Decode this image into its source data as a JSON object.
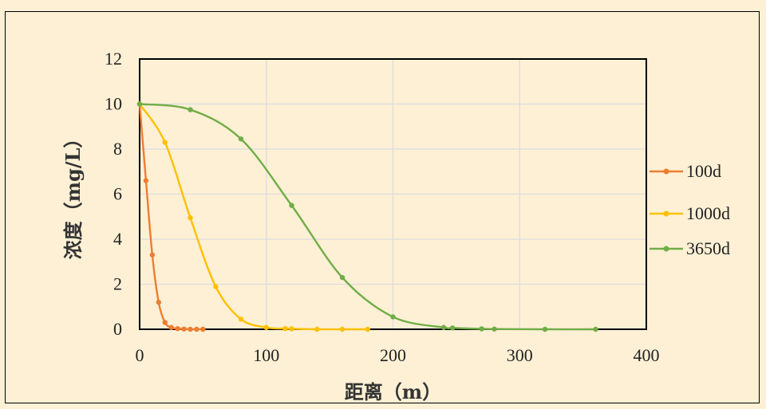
{
  "colors": {
    "background": "#fdf0d5",
    "plot_background": "#fdf0d5",
    "grid": "#dddddd",
    "series_100d": "#ed7d31",
    "series_1000d": "#ffc000",
    "series_3650d": "#70ad47"
  },
  "chart_data": {
    "type": "line",
    "title": "",
    "xlabel": "距离（m）",
    "ylabel": "浓度（mg/L）",
    "xlim": [
      0,
      400
    ],
    "ylim": [
      0,
      12
    ],
    "x_ticks": [
      "0",
      "100",
      "200",
      "300",
      "400"
    ],
    "y_ticks": [
      "0",
      "2",
      "4",
      "6",
      "8",
      "10",
      "12"
    ],
    "grid": true,
    "legend_position": "right",
    "series": [
      {
        "name": "100d",
        "color": "#ed7d31",
        "points": [
          [
            0,
            10
          ],
          [
            5,
            6.6
          ],
          [
            10,
            3.3
          ],
          [
            15,
            1.2
          ],
          [
            20,
            0.3
          ],
          [
            25,
            0.08
          ],
          [
            30,
            0.03
          ],
          [
            35,
            0.01
          ],
          [
            40,
            0.0
          ],
          [
            45,
            0.0
          ],
          [
            50,
            0.0
          ]
        ]
      },
      {
        "name": "1000d",
        "color": "#ffc000",
        "points": [
          [
            0,
            10
          ],
          [
            20,
            8.3
          ],
          [
            40,
            4.95
          ],
          [
            60,
            1.9
          ],
          [
            80,
            0.45
          ],
          [
            100,
            0.08
          ],
          [
            115,
            0.03
          ],
          [
            120,
            0.02
          ],
          [
            140,
            0.0
          ],
          [
            160,
            0.0
          ],
          [
            180,
            0.0
          ]
        ]
      },
      {
        "name": "3650d",
        "color": "#70ad47",
        "points": [
          [
            0,
            10
          ],
          [
            40,
            9.75
          ],
          [
            80,
            8.45
          ],
          [
            120,
            5.5
          ],
          [
            160,
            2.3
          ],
          [
            200,
            0.55
          ],
          [
            240,
            0.08
          ],
          [
            247,
            0.06
          ],
          [
            270,
            0.02
          ],
          [
            280,
            0.01
          ],
          [
            320,
            0.0
          ],
          [
            360,
            0.0
          ]
        ]
      }
    ]
  }
}
